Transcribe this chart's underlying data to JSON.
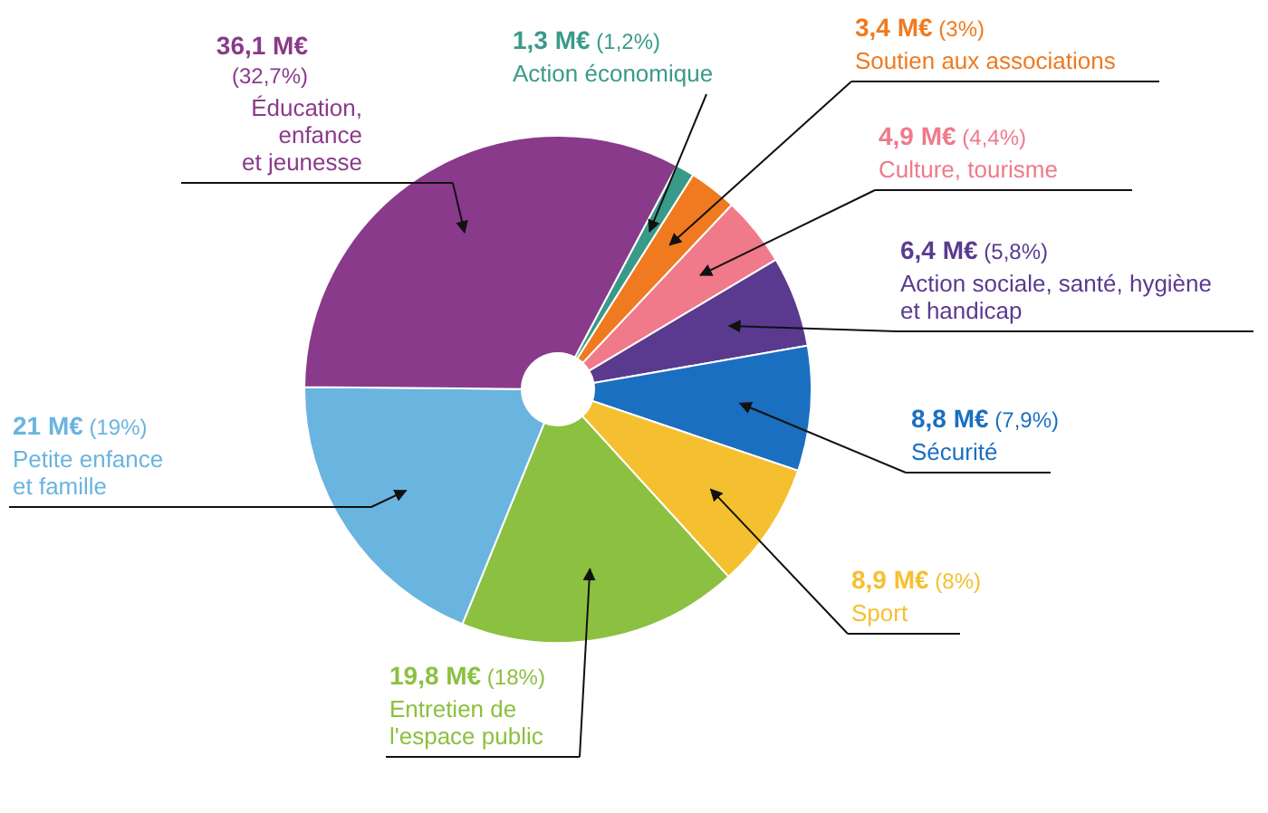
{
  "chart_data": {
    "type": "donut",
    "categories": [
      "Action économique",
      "Soutien aux associations",
      "Culture, tourisme",
      "Action sociale, santé, hygiène et handicap",
      "Sécurité",
      "Sport",
      "Entretien de l'espace public",
      "Petite enfance et famille",
      "Éducation, enfance et jeunesse"
    ],
    "values": [
      1.3,
      3.4,
      4.9,
      6.4,
      8.8,
      8.9,
      19.8,
      21,
      36.1
    ],
    "value_labels": [
      "1,3 M€ (1,2%)",
      "3,4 M€ (3%)",
      "4,9 M€ (4,4%)",
      "6,4 M€ (5,8%)",
      "8,8 M€ (7,9%)",
      "8,9 M€ (8%)",
      "19,8 M€ (18%)",
      "21 M€ (19%)",
      "36,1 M€ (32,7%)"
    ],
    "colors": [
      "#3a9a8a",
      "#f07a1f",
      "#f07a8a",
      "#5a3a8f",
      "#1a6fc0",
      "#f5c030",
      "#8cc040",
      "#6ab4e0",
      "#8a3a8a"
    ]
  }
}
